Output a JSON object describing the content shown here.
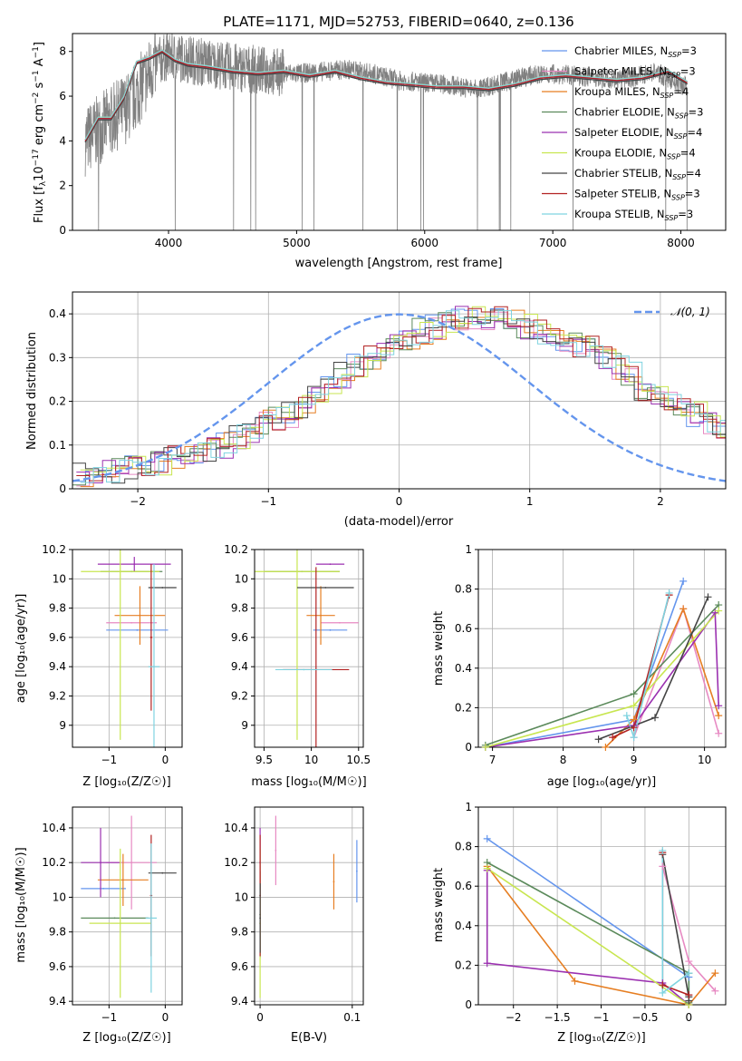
{
  "figure": {
    "title": "PLATE=1171, MJD=52753, FIBERID=0640, z=0.136"
  },
  "chart_data": [
    {
      "id": "spectrum",
      "type": "line",
      "title": "PLATE=1171, MJD=52753, FIBERID=0640, z=0.136",
      "xlabel": "wavelength [Angstrom, rest frame]",
      "ylabel": "Flux [f_λ 10^-17 erg cm^-2 s^-1 A^-1]",
      "xlim": [
        3250,
        8350
      ],
      "ylim": [
        0,
        8.8
      ],
      "xticks": [
        4000,
        5000,
        6000,
        7000,
        8000
      ],
      "yticks": [
        0,
        2,
        4,
        6,
        8
      ],
      "legend": "upper-right",
      "grid": false,
      "observed_envelope": {
        "x": [
          3350,
          3500,
          3700,
          3900,
          4000,
          4200,
          4500,
          4800,
          5000,
          5200,
          5400,
          5600,
          5800,
          6000,
          6200,
          6400,
          6600,
          6800,
          7000,
          7200,
          7400,
          7600,
          7800,
          8000
        ],
        "y": [
          4.0,
          4.7,
          5.6,
          7.5,
          7.8,
          7.6,
          7.3,
          7.1,
          7.0,
          7.1,
          7.2,
          7.0,
          6.7,
          6.6,
          6.5,
          6.3,
          6.6,
          6.9,
          7.0,
          6.9,
          6.8,
          6.8,
          7.1,
          6.5
        ]
      },
      "series": [
        {
          "name": "Chabrier MILES, N_SSP=3",
          "label_main": "Chabrier MILES, N",
          "sub": "SSP",
          "label_end": "=3",
          "color": "#6495ed"
        },
        {
          "name": "Salpeter MILES, N_SSP=3",
          "label_main": "Salpeter MILES, N",
          "sub": "SSP",
          "label_end": "=3",
          "color": "#e78ac3"
        },
        {
          "name": "Kroupa MILES, N_SSP=4",
          "label_main": "Kroupa MILES, N",
          "sub": "SSP",
          "label_end": "=4",
          "color": "#e67e22"
        },
        {
          "name": "Chabrier ELODIE, N_SSP=3",
          "label_main": "Chabrier ELODIE, N",
          "sub": "SSP",
          "label_end": "=3",
          "color": "#5b8a5b"
        },
        {
          "name": "Salpeter ELODIE, N_SSP=4",
          "label_main": "Salpeter ELODIE, N",
          "sub": "SSP",
          "label_end": "=4",
          "color": "#9b30b0"
        },
        {
          "name": "Kroupa ELODIE, N_SSP=4",
          "label_main": "Kroupa ELODIE, N",
          "sub": "SSP",
          "label_end": "=4",
          "color": "#c8e650"
        },
        {
          "name": "Chabrier STELIB, N_SSP=4",
          "label_main": "Chabrier STELIB, N",
          "sub": "SSP",
          "label_end": "=4",
          "color": "#444444"
        },
        {
          "name": "Salpeter STELIB, N_SSP=3",
          "label_main": "Salpeter STELIB, N",
          "sub": "SSP",
          "label_end": "=3",
          "color": "#b22222"
        },
        {
          "name": "Kroupa STELIB, N_SSP=3",
          "label_main": "Kroupa STELIB, N",
          "sub": "SSP",
          "label_end": "=3",
          "color": "#7fd3e0"
        }
      ],
      "model": {
        "x": [
          3350,
          3450,
          3550,
          3650,
          3750,
          3850,
          3950,
          4050,
          4150,
          4300,
          4500,
          4700,
          4900,
          5100,
          5300,
          5500,
          5700,
          5900,
          6100,
          6300,
          6500,
          6700,
          6900,
          7100,
          7300,
          7500,
          7700,
          7900,
          8050
        ],
        "y": [
          4.0,
          5.0,
          5.0,
          5.9,
          7.5,
          7.7,
          8.0,
          7.6,
          7.4,
          7.3,
          7.1,
          7.0,
          7.1,
          6.9,
          7.1,
          6.8,
          6.6,
          6.5,
          6.4,
          6.4,
          6.3,
          6.5,
          6.8,
          6.9,
          6.8,
          6.7,
          6.8,
          7.1,
          6.6
        ]
      }
    },
    {
      "id": "residuals",
      "type": "line",
      "xlabel": "(data-model)/error",
      "ylabel": "Normed distribution",
      "xlim": [
        -2.5,
        2.5
      ],
      "ylim": [
        0,
        0.45
      ],
      "xticks": [
        -2,
        -1,
        0,
        1,
        2
      ],
      "yticks": [
        0.0,
        0.1,
        0.2,
        0.3,
        0.4
      ],
      "legend": "upper-right",
      "legend_label": "𝒩(0, 1)",
      "grid": true,
      "bin_width": 0.1,
      "base_hist": [
        0.03,
        0.03,
        0.04,
        0.04,
        0.05,
        0.05,
        0.06,
        0.07,
        0.08,
        0.08,
        0.09,
        0.1,
        0.12,
        0.13,
        0.15,
        0.16,
        0.17,
        0.19,
        0.21,
        0.24,
        0.26,
        0.28,
        0.3,
        0.32,
        0.33,
        0.34,
        0.36,
        0.37,
        0.38,
        0.39,
        0.39,
        0.39,
        0.4,
        0.39,
        0.37,
        0.36,
        0.35,
        0.34,
        0.33,
        0.32,
        0.3,
        0.28,
        0.26,
        0.23,
        0.22,
        0.2,
        0.18,
        0.17,
        0.15,
        0.13,
        0.12,
        0.1,
        0.09,
        0.08,
        0.07,
        0.07,
        0.06,
        0.05,
        0.05,
        0.04
      ],
      "gauss_series_color": "#6495ed"
    },
    {
      "id": "age-vs-Z",
      "type": "scatter",
      "xlabel": "Z [log₁₀(Z/Z☉)]",
      "ylabel": "age  [log₁₀(age/yr)]",
      "xlim": [
        -1.65,
        0.3
      ],
      "ylim": [
        8.85,
        10.2
      ],
      "xticks": [
        -1,
        0
      ],
      "yticks": [
        9.0,
        9.2,
        9.4,
        9.6,
        9.8,
        10.0,
        10.2
      ],
      "grid": true,
      "points": [
        {
          "x": -0.5,
          "y": 9.65,
          "ex": 0.55,
          "ey": 0.0,
          "color": "#6495ed"
        },
        {
          "x": -0.6,
          "y": 9.7,
          "ex": 0.45,
          "ey": 0.0,
          "color": "#e78ac3"
        },
        {
          "x": -0.45,
          "y": 9.75,
          "ex": 0.45,
          "ey": 0.2,
          "color": "#e67e22"
        },
        {
          "x": -0.6,
          "y": 10.05,
          "ex": 0.55,
          "ey": 0.0,
          "color": "#5b8a5b"
        },
        {
          "x": -0.55,
          "y": 10.1,
          "ex": 0.65,
          "ey": 0.05,
          "color": "#9b30b0"
        },
        {
          "x": -0.8,
          "y": 10.05,
          "ex": 0.7,
          "ey": 1.15,
          "color": "#c8e650"
        },
        {
          "x": -0.05,
          "y": 9.94,
          "ex": 0.25,
          "ey": 0.0,
          "color": "#444444"
        },
        {
          "x": -0.25,
          "y": 9.6,
          "ex": 0.02,
          "ey": 0.5,
          "color": "#b22222"
        },
        {
          "x": -0.2,
          "y": 9.4,
          "ex": 0.1,
          "ey": 0.7,
          "color": "#7fd3e0"
        }
      ]
    },
    {
      "id": "age-vs-mass",
      "type": "scatter",
      "xlabel": "mass [log₁₀(M/M☉)]",
      "xlim": [
        9.4,
        10.55
      ],
      "ylim": [
        8.85,
        10.2
      ],
      "xticks": [
        9.5,
        10.0,
        10.5
      ],
      "yticks": [
        9.0,
        9.2,
        9.4,
        9.6,
        9.8,
        10.0,
        10.2
      ],
      "grid": true,
      "points": [
        {
          "x": 10.2,
          "y": 9.65,
          "ex": 0.18,
          "ey": 0.0,
          "color": "#6495ed"
        },
        {
          "x": 10.3,
          "y": 9.7,
          "ex": 0.2,
          "ey": 0.0,
          "color": "#e78ac3"
        },
        {
          "x": 10.1,
          "y": 9.75,
          "ex": 0.15,
          "ey": 0.2,
          "color": "#e67e22"
        },
        {
          "x": 9.9,
          "y": 10.05,
          "ex": 0.4,
          "ey": 0.0,
          "color": "#5b8a5b"
        },
        {
          "x": 10.2,
          "y": 10.1,
          "ex": 0.15,
          "ey": 0.0,
          "color": "#9b30b0"
        },
        {
          "x": 9.85,
          "y": 10.05,
          "ex": 0.45,
          "ey": 1.15,
          "color": "#c8e650"
        },
        {
          "x": 10.15,
          "y": 9.94,
          "ex": 0.3,
          "ey": 0.0,
          "color": "#444444"
        },
        {
          "x": 10.05,
          "y": 9.38,
          "ex": 0.35,
          "ey": 0.7,
          "color": "#b22222"
        },
        {
          "x": 9.92,
          "y": 9.38,
          "ex": 0.3,
          "ey": 0.0,
          "color": "#7fd3e0"
        }
      ]
    },
    {
      "id": "massweight-vs-age",
      "type": "line",
      "xlabel": "age  [log₁₀(age/yr)]",
      "ylabel": "mass weight",
      "xlim": [
        6.8,
        10.3
      ],
      "ylim": [
        0,
        1.0
      ],
      "xticks": [
        7,
        8,
        9,
        10
      ],
      "yticks": [
        0.0,
        0.2,
        0.4,
        0.6,
        0.8,
        1.0
      ],
      "grid": true,
      "series": [
        {
          "color": "#6495ed",
          "x": [
            6.9,
            9.0,
            9.7
          ],
          "y": [
            0.0,
            0.14,
            0.84
          ]
        },
        {
          "color": "#e78ac3",
          "x": [
            9.0,
            9.7,
            10.2
          ],
          "y": [
            0.05,
            0.7,
            0.07
          ]
        },
        {
          "color": "#e67e22",
          "x": [
            8.6,
            9.0,
            9.7,
            10.2
          ],
          "y": [
            0.0,
            0.14,
            0.7,
            0.16
          ]
        },
        {
          "color": "#5b8a5b",
          "x": [
            6.9,
            9.0,
            10.2
          ],
          "y": [
            0.01,
            0.27,
            0.72
          ]
        },
        {
          "color": "#9b30b0",
          "x": [
            6.9,
            9.0,
            10.15,
            10.2
          ],
          "y": [
            0.0,
            0.11,
            0.68,
            0.21
          ]
        },
        {
          "color": "#c8e650",
          "x": [
            6.9,
            9.0,
            10.2
          ],
          "y": [
            0.0,
            0.21,
            0.69
          ]
        },
        {
          "color": "#444444",
          "x": [
            8.5,
            9.3,
            10.05
          ],
          "y": [
            0.04,
            0.15,
            0.76
          ]
        },
        {
          "color": "#b22222",
          "x": [
            8.7,
            9.0,
            9.5
          ],
          "y": [
            0.05,
            0.1,
            0.77
          ]
        },
        {
          "color": "#7fd3e0",
          "x": [
            8.9,
            9.0,
            9.5
          ],
          "y": [
            0.16,
            0.05,
            0.78
          ]
        }
      ]
    },
    {
      "id": "mass-vs-Z",
      "type": "scatter",
      "xlabel": "Z [log₁₀(Z/Z☉)]",
      "ylabel": "mass [log₁₀(M/M☉)]",
      "xlim": [
        -1.65,
        0.3
      ],
      "ylim": [
        9.38,
        10.52
      ],
      "xticks": [
        -1,
        0
      ],
      "yticks": [
        9.4,
        9.6,
        9.8,
        10.0,
        10.2,
        10.4
      ],
      "grid": true,
      "points": [
        {
          "x": -1.1,
          "y": 10.05,
          "ex": 0.4,
          "ey": 0.0,
          "color": "#6495ed"
        },
        {
          "x": -0.6,
          "y": 10.2,
          "ex": 0.45,
          "ey": 0.27,
          "color": "#e78ac3"
        },
        {
          "x": -0.75,
          "y": 10.1,
          "ex": 0.45,
          "ey": 0.15,
          "color": "#e67e22"
        },
        {
          "x": -0.9,
          "y": 9.88,
          "ex": 0.6,
          "ey": 0.0,
          "color": "#5b8a5b"
        },
        {
          "x": -1.15,
          "y": 10.2,
          "ex": 0.35,
          "ey": 0.2,
          "color": "#9b30b0"
        },
        {
          "x": -0.8,
          "y": 9.85,
          "ex": 0.55,
          "ey": 0.43,
          "color": "#c8e650"
        },
        {
          "x": -0.05,
          "y": 10.14,
          "ex": 0.25,
          "ey": 0.0,
          "color": "#444444"
        },
        {
          "x": -0.25,
          "y": 10.01,
          "ex": 0.02,
          "ey": 0.35,
          "color": "#b22222"
        },
        {
          "x": -0.25,
          "y": 9.88,
          "ex": 0.1,
          "ey": 0.43,
          "color": "#7fd3e0"
        }
      ]
    },
    {
      "id": "mass-vs-EBV",
      "type": "scatter",
      "xlabel": "E(B-V)",
      "xlim": [
        -0.006,
        0.112
      ],
      "ylim": [
        9.38,
        10.52
      ],
      "xticks": [
        0.0,
        0.1
      ],
      "yticks": [
        9.4,
        9.6,
        9.8,
        10.0,
        10.2,
        10.4
      ],
      "grid": true,
      "points": [
        {
          "x": 0.105,
          "y": 10.15,
          "ex": 0.0,
          "ey": 0.18,
          "color": "#6495ed"
        },
        {
          "x": 0.017,
          "y": 10.27,
          "ex": 0.0,
          "ey": 0.2,
          "color": "#e78ac3"
        },
        {
          "x": 0.08,
          "y": 10.09,
          "ex": 0.0,
          "ey": 0.16,
          "color": "#e67e22"
        },
        {
          "x": 0.0,
          "y": 9.9,
          "ex": 0.0,
          "ey": 0.25,
          "color": "#5b8a5b"
        },
        {
          "x": 0.0,
          "y": 10.2,
          "ex": 0.0,
          "ey": 0.2,
          "color": "#9b30b0"
        },
        {
          "x": 0.0,
          "y": 9.85,
          "ex": 0.0,
          "ey": 0.43,
          "color": "#c8e650"
        },
        {
          "x": 0.0,
          "y": 10.01,
          "ex": 0.0,
          "ey": 0.35,
          "color": "#b22222"
        },
        {
          "x": 0.0,
          "y": 9.88,
          "ex": 0.0,
          "ey": 0.2,
          "color": "#444444"
        }
      ]
    },
    {
      "id": "massweight-vs-Z",
      "type": "line",
      "xlabel": "Z [log₁₀(Z/Z☉)]",
      "ylabel": "mass weight",
      "xlim": [
        -2.4,
        0.42
      ],
      "ylim": [
        0,
        1.0
      ],
      "xticks": [
        -2.0,
        -1.5,
        -1.0,
        -0.5,
        0.0
      ],
      "yticks": [
        0.0,
        0.2,
        0.4,
        0.6,
        0.8,
        1.0
      ],
      "grid": true,
      "series": [
        {
          "color": "#6495ed",
          "x": [
            -2.3,
            0.0,
            0.0
          ],
          "y": [
            0.84,
            0.14,
            0.0
          ]
        },
        {
          "color": "#e78ac3",
          "x": [
            -0.3,
            0.0,
            0.3
          ],
          "y": [
            0.7,
            0.22,
            0.07
          ]
        },
        {
          "color": "#e67e22",
          "x": [
            -2.3,
            -1.3,
            0.0,
            0.3
          ],
          "y": [
            0.7,
            0.12,
            0.0,
            0.16
          ]
        },
        {
          "color": "#5b8a5b",
          "x": [
            -2.3,
            0.0,
            0.0
          ],
          "y": [
            0.72,
            0.16,
            0.01
          ]
        },
        {
          "color": "#9b30b0",
          "x": [
            -2.3,
            -2.3,
            -0.3,
            0.0
          ],
          "y": [
            0.68,
            0.21,
            0.11,
            0.0
          ]
        },
        {
          "color": "#c8e650",
          "x": [
            -2.3,
            0.0
          ],
          "y": [
            0.69,
            0.0
          ]
        },
        {
          "color": "#444444",
          "x": [
            -0.3,
            0.0,
            0.0
          ],
          "y": [
            0.76,
            0.04,
            0.02
          ]
        },
        {
          "color": "#b22222",
          "x": [
            -0.3,
            -0.3,
            0.0
          ],
          "y": [
            0.77,
            0.1,
            0.05
          ]
        },
        {
          "color": "#7fd3e0",
          "x": [
            -0.3,
            -0.3,
            0.0
          ],
          "y": [
            0.78,
            0.06,
            0.16
          ]
        }
      ]
    }
  ],
  "labels": {
    "title": "PLATE=1171, MJD=52753, FIBERID=0640, z=0.136",
    "spec_x": "wavelength [Angstrom, rest frame]",
    "res_x": "(data-model)/error",
    "res_y": "Normed distribution",
    "res_legend": "𝒩(0, 1)",
    "ageZ_x": "Z [log₁₀(Z/Z☉)]",
    "ageZ_y": "age  [log₁₀(age/yr)]",
    "agem_x": "mass [log₁₀(M/M☉)]",
    "mwage_x": "age  [log₁₀(age/yr)]",
    "mwage_y": "mass weight",
    "mZ_x": "Z [log₁₀(Z/Z☉)]",
    "mZ_y": "mass [log₁₀(M/M☉)]",
    "mebv_x": "E(B-V)",
    "mwZ_x": "Z [log₁₀(Z/Z☉)]",
    "mwZ_y": "mass weight"
  }
}
